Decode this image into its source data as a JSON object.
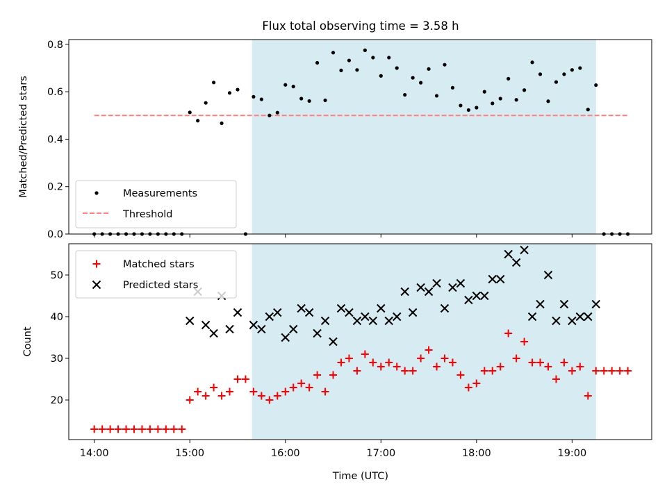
{
  "title": "Flux total observing time = 3.58 h",
  "colors": {
    "shade": "#add8e6",
    "threshold": "#ff7f7f",
    "matched": "#ff0000",
    "predicted": "#000000",
    "measurement": "#000000"
  },
  "chart_data": [
    {
      "type": "scatter",
      "panel": "top",
      "ylabel": "Matched/Predicted stars",
      "xlabel": "",
      "xlim": [
        "13:44",
        "19:50"
      ],
      "ylim": [
        0,
        0.82
      ],
      "yticks": [
        "0.0",
        "0.2",
        "0.4",
        "0.6",
        "0.8"
      ],
      "shaded_span": [
        "15:39",
        "19:15"
      ],
      "legend_position": "lower-left",
      "legend": [
        "Measurements",
        "Threshold"
      ],
      "threshold": {
        "name": "Threshold",
        "y": 0.5,
        "x_range": [
          "14:00",
          "19:35"
        ]
      },
      "series": [
        {
          "name": "Measurements",
          "marker": "dot",
          "x": [
            "14:00",
            "14:05",
            "14:10",
            "14:15",
            "14:20",
            "14:25",
            "14:30",
            "14:35",
            "14:40",
            "14:45",
            "14:50",
            "14:55",
            "15:00",
            "15:05",
            "15:10",
            "15:15",
            "15:20",
            "15:25",
            "15:30",
            "15:35",
            "15:40",
            "15:45",
            "15:50",
            "15:55",
            "16:00",
            "16:05",
            "16:10",
            "16:15",
            "16:20",
            "16:25",
            "16:30",
            "16:35",
            "16:40",
            "16:45",
            "16:50",
            "16:55",
            "17:00",
            "17:05",
            "17:10",
            "17:15",
            "17:20",
            "17:25",
            "17:30",
            "17:35",
            "17:40",
            "17:45",
            "17:50",
            "17:55",
            "18:00",
            "18:05",
            "18:10",
            "18:15",
            "18:20",
            "18:25",
            "18:30",
            "18:35",
            "18:40",
            "18:45",
            "18:50",
            "18:55",
            "19:00",
            "19:05",
            "19:10",
            "19:15",
            "19:20",
            "19:25",
            "19:30",
            "19:35"
          ],
          "y": [
            0,
            0,
            0,
            0,
            0,
            0,
            0,
            0,
            0,
            0,
            0,
            0,
            0.513,
            0.478,
            0.553,
            0.639,
            0.467,
            0.595,
            0.609,
            0,
            0.579,
            0.568,
            0.5,
            0.512,
            0.629,
            0.622,
            0.571,
            0.561,
            0.722,
            0.564,
            0.765,
            0.69,
            0.732,
            0.692,
            0.775,
            0.744,
            0.667,
            0.744,
            0.7,
            0.587,
            0.659,
            0.638,
            0.696,
            0.583,
            0.714,
            0.617,
            0.542,
            0.523,
            0.533,
            0.6,
            0.551,
            0.571,
            0.655,
            0.566,
            0.607,
            0.724,
            0.674,
            0.56,
            0.641,
            0.674,
            0.692,
            0.7,
            0.525,
            0.628,
            0,
            0,
            0,
            0
          ]
        }
      ]
    },
    {
      "type": "scatter",
      "panel": "bottom",
      "ylabel": "Count",
      "xlabel": "Time (UTC)",
      "xlim": [
        "13:44",
        "19:50"
      ],
      "ylim": [
        10.5,
        57.5
      ],
      "yticks": [
        "20",
        "30",
        "40",
        "50"
      ],
      "xticks": [
        "14:00",
        "15:00",
        "16:00",
        "17:00",
        "18:00",
        "19:00"
      ],
      "shaded_span": [
        "15:39",
        "19:15"
      ],
      "legend_position": "upper-left",
      "legend": [
        "Matched stars",
        "Predicted stars"
      ],
      "series": [
        {
          "name": "Matched stars",
          "marker": "+",
          "x": [
            "14:00",
            "14:05",
            "14:10",
            "14:15",
            "14:20",
            "14:25",
            "14:30",
            "14:35",
            "14:40",
            "14:45",
            "14:50",
            "14:55",
            "15:00",
            "15:05",
            "15:10",
            "15:15",
            "15:20",
            "15:25",
            "15:30",
            "15:35",
            "15:40",
            "15:45",
            "15:50",
            "15:55",
            "16:00",
            "16:05",
            "16:10",
            "16:15",
            "16:20",
            "16:25",
            "16:30",
            "16:35",
            "16:40",
            "16:45",
            "16:50",
            "16:55",
            "17:00",
            "17:05",
            "17:10",
            "17:15",
            "17:20",
            "17:25",
            "17:30",
            "17:35",
            "17:40",
            "17:45",
            "17:50",
            "17:55",
            "18:00",
            "18:05",
            "18:10",
            "18:15",
            "18:20",
            "18:25",
            "18:30",
            "18:35",
            "18:40",
            "18:45",
            "18:50",
            "18:55",
            "19:00",
            "19:05",
            "19:10",
            "19:15",
            "19:20",
            "19:25",
            "19:30",
            "19:35"
          ],
          "y": [
            13,
            13,
            13,
            13,
            13,
            13,
            13,
            13,
            13,
            13,
            13,
            13,
            20,
            22,
            21,
            23,
            21,
            22,
            25,
            25,
            22,
            21,
            20,
            21,
            22,
            23,
            24,
            23,
            26,
            22,
            26,
            29,
            30,
            27,
            31,
            29,
            28,
            29,
            28,
            27,
            27,
            30,
            32,
            28,
            30,
            29,
            26,
            23,
            24,
            27,
            27,
            28,
            36,
            30,
            34,
            29,
            29,
            28,
            25,
            29,
            27,
            28,
            21,
            27,
            27,
            27,
            27,
            27
          ]
        },
        {
          "name": "Predicted stars",
          "marker": "x",
          "x": [
            "15:00",
            "15:05",
            "15:10",
            "15:15",
            "15:20",
            "15:25",
            "15:30",
            "15:40",
            "15:45",
            "15:50",
            "15:55",
            "16:00",
            "16:05",
            "16:10",
            "16:15",
            "16:20",
            "16:25",
            "16:30",
            "16:35",
            "16:40",
            "16:45",
            "16:50",
            "16:55",
            "17:00",
            "17:05",
            "17:10",
            "17:15",
            "17:20",
            "17:25",
            "17:30",
            "17:35",
            "17:40",
            "17:45",
            "17:50",
            "17:55",
            "18:00",
            "18:05",
            "18:10",
            "18:15",
            "18:20",
            "18:25",
            "18:30",
            "18:35",
            "18:40",
            "18:45",
            "18:50",
            "18:55",
            "19:00",
            "19:05",
            "19:10",
            "19:15"
          ],
          "y": [
            39,
            46,
            38,
            36,
            45,
            37,
            41,
            38,
            37,
            40,
            41,
            35,
            37,
            42,
            41,
            36,
            39,
            34,
            42,
            41,
            39,
            40,
            39,
            42,
            39,
            40,
            46,
            41,
            47,
            46,
            48,
            42,
            47,
            48,
            44,
            45,
            45,
            49,
            49,
            55,
            53,
            56,
            40,
            43,
            50,
            39,
            43,
            39,
            40,
            40,
            43
          ]
        }
      ]
    }
  ]
}
